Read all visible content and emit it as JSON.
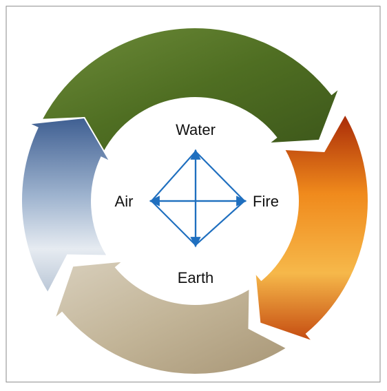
{
  "nodes": [
    {
      "label": "Water"
    },
    {
      "label": "Fire"
    },
    {
      "label": "Earth"
    },
    {
      "label": "Air"
    }
  ]
}
